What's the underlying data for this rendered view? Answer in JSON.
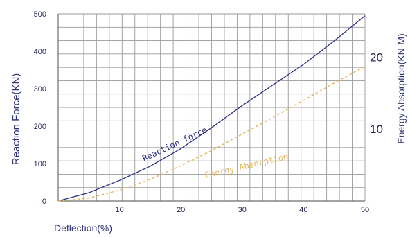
{
  "chart_data": {
    "type": "line",
    "xlabel": "Deflection(%)",
    "ylabel": "Reaction Force(KN)",
    "y2label": "Energy Absorption(KN-M)",
    "xlim": [
      0,
      50
    ],
    "ylim": [
      0,
      500
    ],
    "y2lim": [
      0,
      26
    ],
    "xticks": [
      "10",
      "20",
      "30",
      "40",
      "50"
    ],
    "yticks": [
      "0",
      "100",
      "200",
      "300",
      "400",
      "500"
    ],
    "y2ticks": [
      "10",
      "20"
    ],
    "grid": true,
    "series": [
      {
        "name": "Reaction force",
        "axis": "left",
        "color": "#2b2f86",
        "style": "solid",
        "x": [
          0,
          5,
          10,
          15,
          20,
          25,
          30,
          35,
          40,
          45,
          50
        ],
        "y": [
          0,
          22,
          55,
          93,
          140,
          196,
          255,
          310,
          365,
          428,
          495
        ]
      },
      {
        "name": "Energy Absorption",
        "axis": "right",
        "color": "#e2b860",
        "style": "dashed",
        "x": [
          0,
          5,
          10,
          15,
          20,
          25,
          30,
          35,
          40,
          45,
          50
        ],
        "y": [
          0,
          0.4,
          1.5,
          3.0,
          4.9,
          7.0,
          9.3,
          11.6,
          14.0,
          16.4,
          18.7
        ]
      }
    ],
    "curve_labels": {
      "reaction": "Reaction force",
      "energy": "Energy Absorption"
    }
  }
}
